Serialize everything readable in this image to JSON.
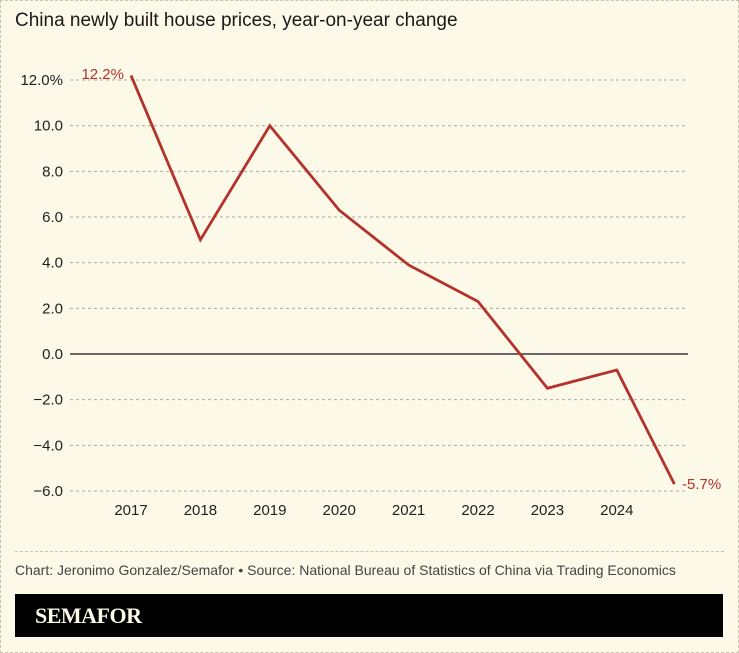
{
  "title": "China newly built house prices, year-on-year change",
  "credit": "Chart: Jeronimo Gonzalez/Semafor • Source: National Bureau of Statistics of China via Trading Economics",
  "logo": "SEMAFOR",
  "chart_data": {
    "type": "line",
    "title": "China newly built house prices, year-on-year change",
    "xlabel": "",
    "ylabel": "",
    "x_ticks": [
      "2017",
      "2018",
      "2019",
      "2020",
      "2021",
      "2022",
      "2023",
      "2024"
    ],
    "y_ticks": [
      12,
      10,
      8,
      6,
      4,
      2,
      0,
      -2,
      -4,
      -6
    ],
    "y_tick_labels": [
      "12.0%",
      "10.0",
      "8.0",
      "6.0",
      "4.0",
      "2.0",
      "0.0",
      "−2.0",
      "−4.0",
      "−6.0"
    ],
    "ylim": [
      -6,
      12
    ],
    "grid": true,
    "series": [
      {
        "color": "#b3322b",
        "x": [
          2017,
          2018,
          2019,
          2020,
          2021,
          2022,
          2023,
          2024,
          2024.83
        ],
        "y": [
          12.2,
          5.0,
          10.0,
          6.3,
          3.9,
          2.3,
          -1.5,
          -0.7,
          -5.7
        ]
      }
    ],
    "annotations": [
      "12.2%",
      "-5.7%"
    ]
  }
}
